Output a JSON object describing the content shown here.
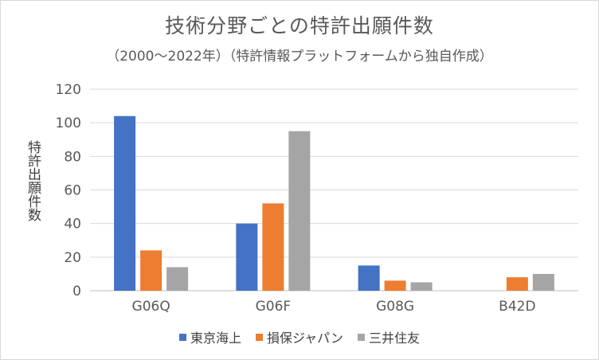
{
  "chart_data": {
    "type": "bar",
    "title": "技術分野ごとの特許出願件数",
    "subtitle": "（2000～2022年）（特許情報プラットフォームから独自作成）",
    "ylabel": "特許出願件数",
    "xlabel": "",
    "categories": [
      "G06Q",
      "G06F",
      "G08G",
      "B42D"
    ],
    "ylim": [
      0,
      120
    ],
    "yticks": [
      0,
      20,
      40,
      60,
      80,
      100,
      120
    ],
    "grid": true,
    "legend_position": "bottom",
    "series": [
      {
        "name": "東京海上",
        "color": "#4472C4",
        "values": [
          104,
          40,
          15,
          0
        ]
      },
      {
        "name": "損保ジャパン",
        "color": "#ED7D31",
        "values": [
          24,
          52,
          6,
          8
        ]
      },
      {
        "name": "三井住友",
        "color": "#A5A5A5",
        "values": [
          14,
          95,
          5,
          10
        ]
      }
    ]
  }
}
